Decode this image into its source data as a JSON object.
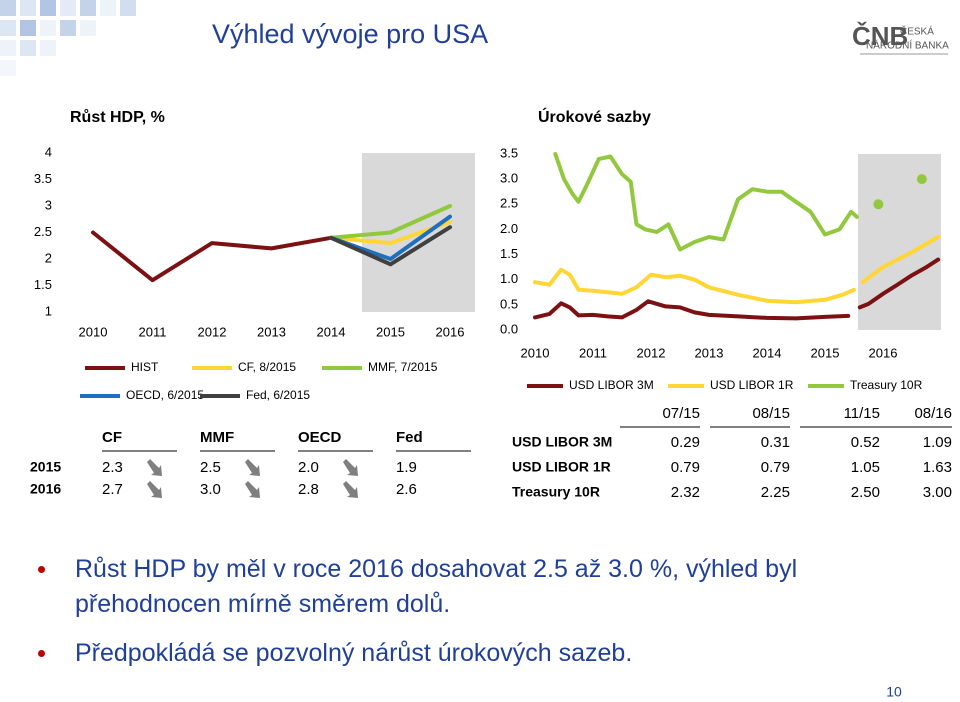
{
  "header": {
    "title": "Výhled vývoje pro USA",
    "logo": {
      "mark": "ČNB",
      "line1": "ČESKÁ",
      "line2": "NÁRODNÍ BANKA"
    }
  },
  "chart_data": [
    {
      "type": "line",
      "title": "Růst HDP, %",
      "categories": [
        "2010",
        "2011",
        "2012",
        "2013",
        "2014",
        "2015",
        "2016"
      ],
      "ylim": [
        1,
        4
      ],
      "yticks": [
        1,
        1.5,
        2,
        2.5,
        3,
        3.5,
        4
      ],
      "grid": false,
      "series": [
        {
          "name": "HIST",
          "color": "#7b1113",
          "values": [
            2.5,
            1.6,
            2.3,
            2.2,
            2.4,
            null,
            null
          ]
        },
        {
          "name": "CF, 8/2015",
          "color": "#ffd633",
          "values": [
            null,
            null,
            null,
            null,
            2.4,
            2.3,
            2.7
          ]
        },
        {
          "name": "MMF, 7/2015",
          "color": "#92c83e",
          "values": [
            null,
            null,
            null,
            null,
            2.4,
            2.5,
            3.0
          ]
        },
        {
          "name": "OECD, 6/2015",
          "color": "#1f6fbf",
          "values": [
            null,
            null,
            null,
            null,
            2.4,
            2.0,
            2.8
          ]
        },
        {
          "name": "Fed, 6/2015",
          "color": "#404040",
          "values": [
            null,
            null,
            null,
            null,
            2.4,
            1.9,
            2.6
          ]
        }
      ]
    },
    {
      "type": "line",
      "title": "Úrokové sazby",
      "xlim": [
        2010,
        2017
      ],
      "xticks": [
        2010,
        2011,
        2012,
        2013,
        2014,
        2015,
        2016
      ],
      "ylim": [
        0,
        3.5
      ],
      "yticks": [
        {
          "value": 0,
          "label": "0.0"
        },
        0.5,
        {
          "value": 1,
          "label": "1.0"
        },
        1.5,
        {
          "value": 2,
          "label": "2.0"
        },
        2.5,
        {
          "value": 3,
          "label": "3.0"
        },
        3.5
      ],
      "grid": false,
      "series": [
        {
          "name": "USD LIBOR 3M",
          "color": "#7b1113",
          "x": [
            2010.0,
            2010.25,
            2010.45,
            2010.6,
            2010.75,
            2011.0,
            2011.25,
            2011.5,
            2011.75,
            2011.95,
            2012.25,
            2012.5,
            2012.75,
            2013.0,
            2013.5,
            2014.0,
            2014.5,
            2015.0,
            2015.4,
            2015.5,
            2015.6,
            2015.75,
            2016.0,
            2016.25,
            2016.5,
            2016.75,
            2016.95
          ],
          "values": [
            0.25,
            0.32,
            0.53,
            0.45,
            0.29,
            0.3,
            0.27,
            0.25,
            0.4,
            0.57,
            0.47,
            0.45,
            0.35,
            0.3,
            0.27,
            0.24,
            0.23,
            0.26,
            0.28,
            null,
            0.45,
            0.52,
            0.72,
            0.9,
            1.09,
            1.25,
            1.4
          ]
        },
        {
          "name": "USD LIBOR 1R",
          "color": "#ffd633",
          "x": [
            2010.0,
            2010.25,
            2010.45,
            2010.6,
            2010.75,
            2011.0,
            2011.25,
            2011.5,
            2011.75,
            2012.0,
            2012.25,
            2012.5,
            2012.75,
            2013.0,
            2013.5,
            2014.0,
            2014.5,
            2015.0,
            2015.3,
            2015.5,
            2015.58,
            2015.65,
            2016.0,
            2016.5,
            2016.95
          ],
          "values": [
            0.95,
            0.9,
            1.2,
            1.1,
            0.8,
            0.78,
            0.75,
            0.72,
            0.85,
            1.1,
            1.05,
            1.08,
            1.0,
            0.85,
            0.7,
            0.58,
            0.55,
            0.6,
            0.7,
            0.8,
            null,
            0.95,
            1.25,
            1.55,
            1.85
          ]
        },
        {
          "name": "Treasury 10R",
          "color": "#92c83e",
          "x": [
            2010.35,
            2010.5,
            2010.65,
            2010.75,
            2010.9,
            2011.1,
            2011.3,
            2011.5,
            2011.65,
            2011.75,
            2011.9,
            2012.1,
            2012.3,
            2012.5,
            2012.75,
            2013.0,
            2013.25,
            2013.5,
            2013.75,
            2014.0,
            2014.25,
            2014.5,
            2014.75,
            2015.0,
            2015.25,
            2015.45,
            2015.55,
            2015.7,
            2015.92,
            2016.3,
            2016.67
          ],
          "values": [
            3.5,
            3.0,
            2.7,
            2.55,
            2.9,
            3.4,
            3.45,
            3.1,
            2.95,
            2.1,
            2.0,
            1.95,
            2.1,
            1.6,
            1.75,
            1.85,
            1.8,
            2.6,
            2.8,
            2.75,
            2.75,
            2.55,
            2.35,
            1.9,
            2.0,
            2.35,
            2.25,
            null,
            2.5,
            null,
            3.0
          ]
        }
      ]
    }
  ],
  "gdp_table": {
    "columns": [
      "CF",
      "MMF",
      "OECD",
      "Fed"
    ],
    "rows": [
      {
        "label": "2015",
        "cells": [
          "2.3",
          "2.5",
          "2.0",
          "1.9"
        ]
      },
      {
        "label": "2016",
        "cells": [
          "2.7",
          "3.0",
          "2.8",
          "2.6"
        ]
      }
    ]
  },
  "rates_table": {
    "columns": [
      "07/15",
      "08/15",
      "11/15",
      "08/16"
    ],
    "rows": [
      {
        "label": "USD LIBOR 3M",
        "cells": [
          "0.29",
          "0.31",
          "0.52",
          "1.09"
        ]
      },
      {
        "label": "USD LIBOR 1R",
        "cells": [
          "0.79",
          "0.79",
          "1.05",
          "1.63"
        ]
      },
      {
        "label": "Treasury 10R",
        "cells": [
          "2.32",
          "2.25",
          "2.50",
          "3.00"
        ]
      }
    ]
  },
  "bullets": [
    "Růst HDP  by měl v roce 2016 dosahovat 2.5 až 3.0 %, výhled byl přehodnocen mírně směrem dolů.",
    "Předpokládá se pozvolný nárůst úrokových sazeb."
  ],
  "page_number": "10"
}
